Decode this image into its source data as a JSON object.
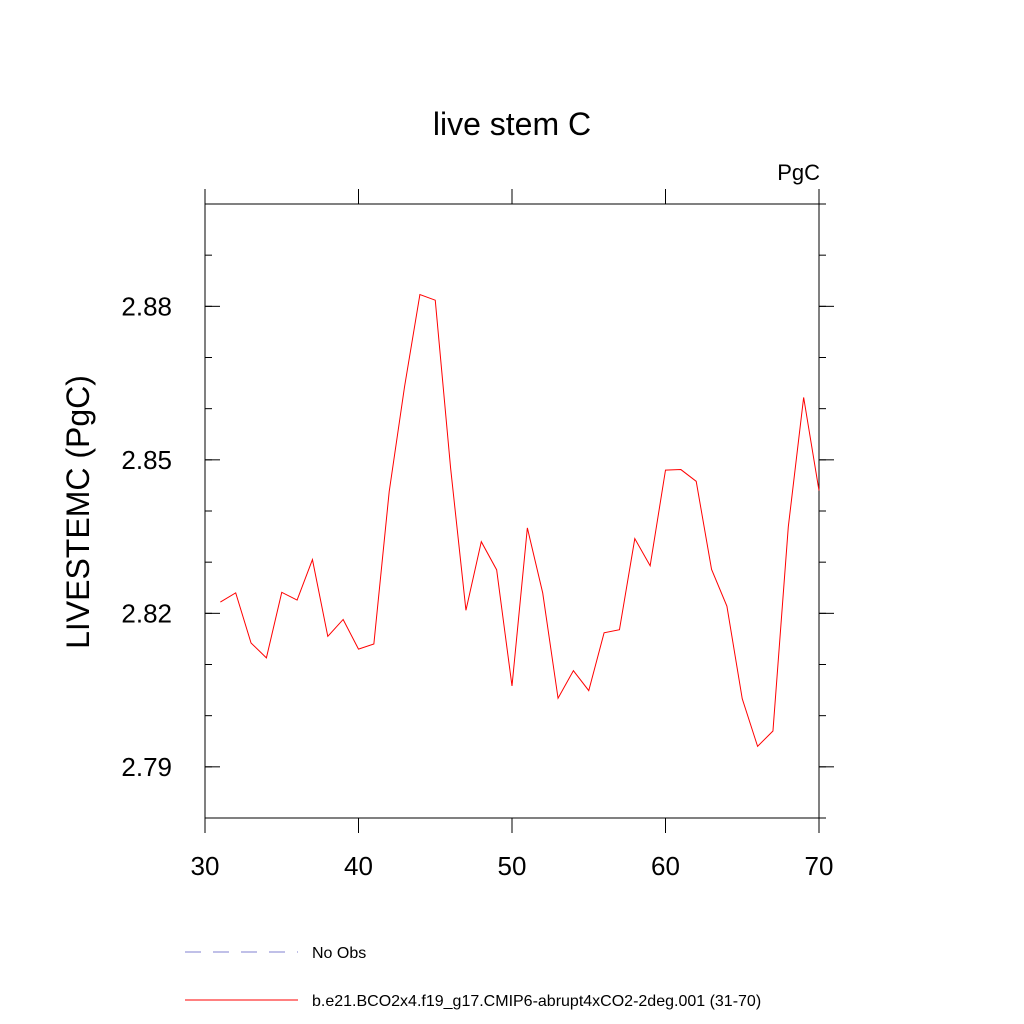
{
  "chart_data": {
    "type": "line",
    "title": "live stem C",
    "units_label": "PgC",
    "xlabel": "",
    "ylabel": "LIVESTEMC  (PgC)",
    "xlim": [
      30,
      70
    ],
    "ylim": [
      2.78,
      2.9
    ],
    "x_ticks": [
      30,
      40,
      50,
      60,
      70
    ],
    "x_tick_labels": [
      "30",
      "40",
      "50",
      "60",
      "70"
    ],
    "y_ticks": [
      2.79,
      2.82,
      2.85,
      2.88
    ],
    "y_tick_labels": [
      "2.79",
      "2.82",
      "2.85",
      "2.88"
    ],
    "grid": false,
    "legend_position": "bottom",
    "series": [
      {
        "name": "No Obs",
        "color": "#8080d0",
        "dash": "dashed",
        "x": [],
        "values": []
      },
      {
        "name": "b.e21.BCO2x4.f19_g17.CMIP6-abrupt4xCO2-2deg.001 (31-70)",
        "color": "#ff0000",
        "dash": "solid",
        "x": [
          31,
          32,
          33,
          34,
          35,
          36,
          37,
          38,
          39,
          40,
          41,
          42,
          43,
          44,
          45,
          46,
          47,
          48,
          49,
          50,
          51,
          52,
          53,
          54,
          55,
          56,
          57,
          58,
          59,
          60,
          61,
          62,
          63,
          64,
          65,
          66,
          67,
          68,
          69,
          70
        ],
        "values": [
          2.8222,
          2.824,
          2.8142,
          2.8113,
          2.8241,
          2.8226,
          2.8305,
          2.8155,
          2.8188,
          2.813,
          2.814,
          2.8438,
          2.8643,
          2.8823,
          2.8812,
          2.8484,
          2.8206,
          2.834,
          2.8285,
          2.8058,
          2.8367,
          2.824,
          2.8034,
          2.8088,
          2.8049,
          2.8162,
          2.8168,
          2.8346,
          2.8293,
          2.848,
          2.8481,
          2.8458,
          2.8286,
          2.8214,
          2.8033,
          2.794,
          2.797,
          2.8369,
          2.8622,
          2.844
        ]
      }
    ]
  }
}
